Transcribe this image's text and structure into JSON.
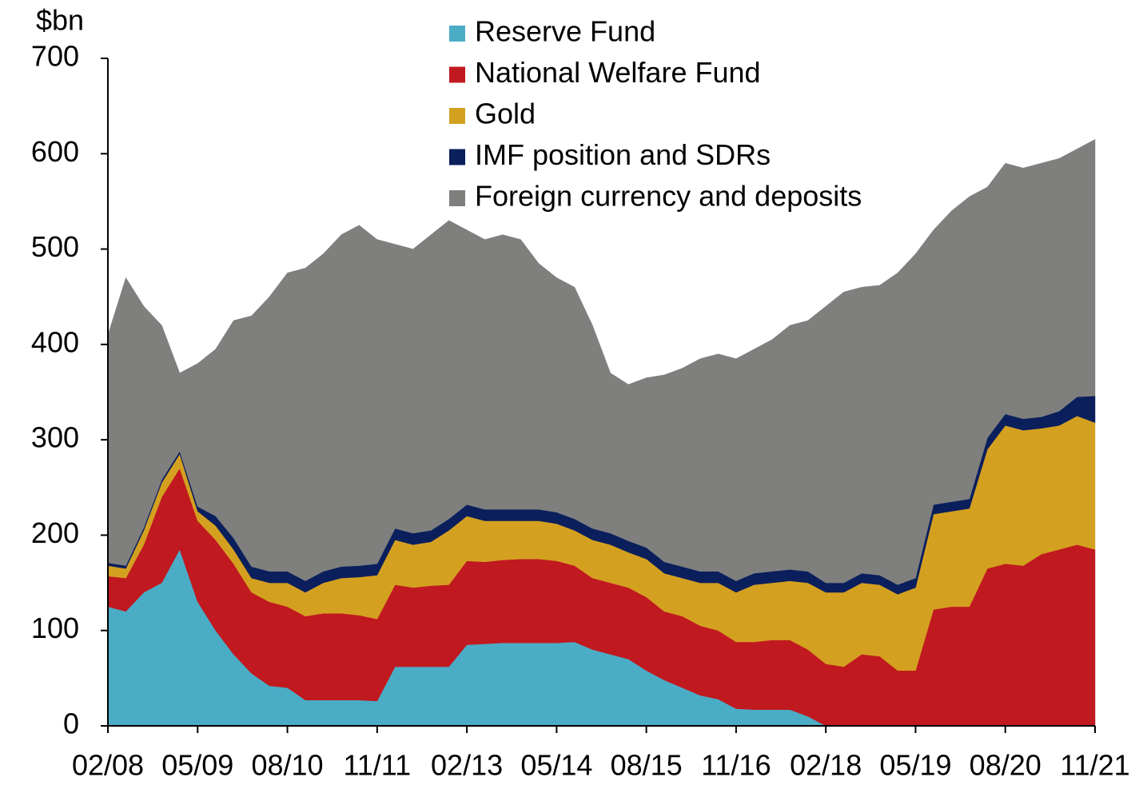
{
  "chart_data": {
    "type": "stacked_area",
    "y_axis_label": "$bn",
    "categories": [
      "02/08",
      null,
      null,
      null,
      null,
      "05/09",
      null,
      null,
      null,
      null,
      "08/10",
      null,
      null,
      null,
      null,
      "11/11",
      null,
      null,
      null,
      null,
      "02/13",
      null,
      null,
      null,
      null,
      "05/14",
      null,
      null,
      null,
      null,
      "08/15",
      null,
      null,
      null,
      null,
      "11/16",
      null,
      null,
      null,
      null,
      "02/18",
      null,
      null,
      null,
      null,
      "05/19",
      null,
      null,
      null,
      null,
      "08/20",
      null,
      null,
      null,
      null,
      "11/21"
    ],
    "series": [
      {
        "name": "Reserve Fund",
        "color": "#4bacc6",
        "values": [
          125,
          120,
          140,
          150,
          185,
          130,
          100,
          75,
          55,
          42,
          40,
          27,
          27,
          27,
          27,
          26,
          62,
          62,
          62,
          62,
          85,
          86,
          87,
          87,
          87,
          87,
          88,
          80,
          75,
          70,
          58,
          48,
          40,
          32,
          28,
          18,
          17,
          17,
          17,
          10,
          0,
          0,
          0,
          0,
          0,
          0,
          0,
          0,
          0,
          0,
          0,
          0,
          0,
          0,
          0,
          0
        ]
      },
      {
        "name": "National Welfare Fund",
        "color": "#c0191f",
        "values": [
          32,
          35,
          50,
          90,
          85,
          85,
          95,
          95,
          85,
          88,
          85,
          88,
          91,
          91,
          89,
          86,
          86,
          83,
          85,
          86,
          88,
          86,
          87,
          88,
          88,
          86,
          80,
          75,
          75,
          75,
          77,
          72,
          75,
          73,
          72,
          70,
          71,
          73,
          73,
          70,
          65,
          62,
          75,
          73,
          58,
          58,
          122,
          125,
          125,
          165,
          170,
          168,
          180,
          185,
          190,
          185
        ]
      },
      {
        "name": "Gold",
        "color": "#d4a020",
        "values": [
          11,
          10,
          15,
          15,
          15,
          10,
          15,
          15,
          15,
          20,
          25,
          25,
          32,
          37,
          40,
          46,
          47,
          45,
          46,
          57,
          47,
          43,
          41,
          40,
          40,
          39,
          37,
          40,
          40,
          37,
          40,
          40,
          40,
          45,
          50,
          52,
          60,
          60,
          62,
          70,
          75,
          78,
          75,
          75,
          80,
          87,
          100,
          100,
          103,
          125,
          145,
          142,
          132,
          130,
          135,
          133
        ]
      },
      {
        "name": "IMF position and SDRs",
        "color": "#0a1f5c",
        "values": [
          3,
          3,
          3,
          3,
          3,
          5,
          10,
          12,
          12,
          12,
          12,
          12,
          12,
          12,
          12,
          12,
          12,
          12,
          12,
          12,
          12,
          12,
          12,
          12,
          12,
          12,
          12,
          12,
          12,
          12,
          12,
          12,
          12,
          12,
          12,
          12,
          12,
          12,
          12,
          12,
          10,
          10,
          10,
          10,
          10,
          10,
          10,
          10,
          10,
          12,
          12,
          12,
          12,
          15,
          20,
          28
        ]
      },
      {
        "name": "Foreign currency and deposits",
        "color": "#7f7f7e",
        "values": [
          239,
          302,
          232,
          162,
          82,
          150,
          175,
          228,
          263,
          288,
          313,
          328,
          333,
          348,
          357,
          340,
          298,
          298,
          310,
          313,
          288,
          283,
          288,
          283,
          258,
          246,
          243,
          213,
          168,
          164,
          178,
          196,
          208,
          223,
          228,
          233,
          235,
          243,
          256,
          263,
          290,
          305,
          300,
          304,
          327,
          340,
          288,
          305,
          317,
          263,
          263,
          263,
          266,
          265,
          260,
          269
        ]
      }
    ],
    "ylim": [
      0,
      700
    ],
    "yticks": [
      0,
      100,
      200,
      300,
      400,
      500,
      600,
      700
    ]
  }
}
